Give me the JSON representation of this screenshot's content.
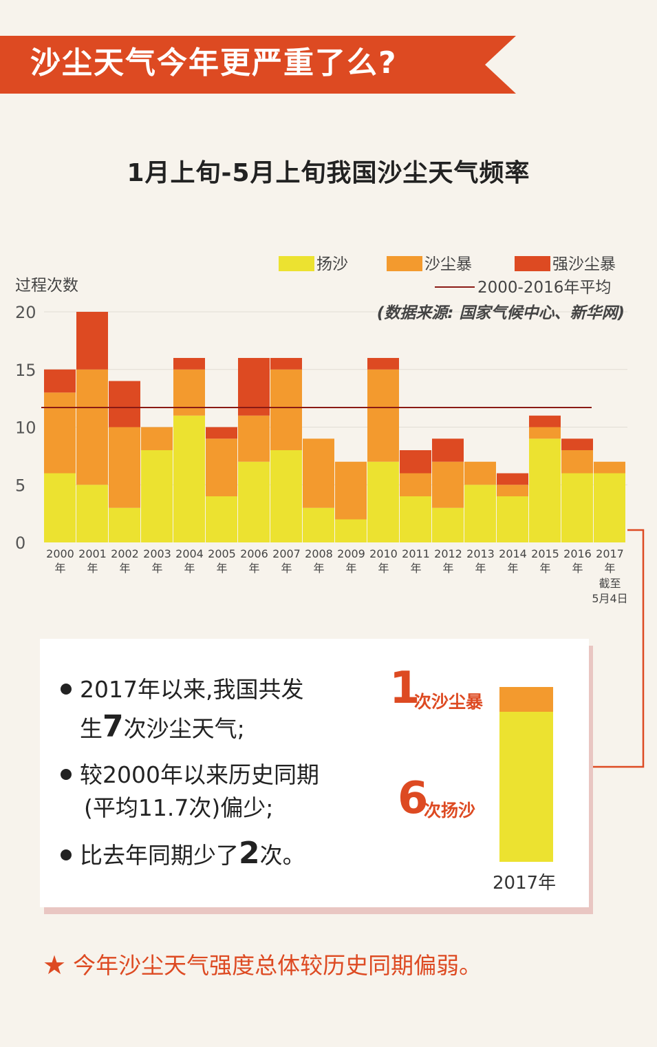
{
  "banner": {
    "title": "沙尘天气今年更严重了么?"
  },
  "chart_data": {
    "type": "bar",
    "stacked": true,
    "title": "1月上旬-5月上旬我国沙尘天气频率",
    "ylabel": "过程次数",
    "ylim": [
      0,
      20
    ],
    "yticks": [
      0,
      5,
      10,
      15,
      20
    ],
    "categories": [
      "2000",
      "2001",
      "2002",
      "2003",
      "2004",
      "2005",
      "2006",
      "2007",
      "2008",
      "2009",
      "2010",
      "2011",
      "2012",
      "2013",
      "2014",
      "2015",
      "2016",
      "2017"
    ],
    "category_labels": [
      {
        "year": "2000",
        "suffix": "年"
      },
      {
        "year": "2001",
        "suffix": "年"
      },
      {
        "year": "2002",
        "suffix": "年"
      },
      {
        "year": "2003",
        "suffix": "年"
      },
      {
        "year": "2004",
        "suffix": "年"
      },
      {
        "year": "2005",
        "suffix": "年"
      },
      {
        "year": "2006",
        "suffix": "年"
      },
      {
        "year": "2007",
        "suffix": "年"
      },
      {
        "year": "2008",
        "suffix": "年"
      },
      {
        "year": "2009",
        "suffix": "年"
      },
      {
        "year": "2010",
        "suffix": "年"
      },
      {
        "year": "2011",
        "suffix": "年"
      },
      {
        "year": "2012",
        "suffix": "年"
      },
      {
        "year": "2013",
        "suffix": "年"
      },
      {
        "year": "2014",
        "suffix": "年"
      },
      {
        "year": "2015",
        "suffix": "年"
      },
      {
        "year": "2016",
        "suffix": "年"
      },
      {
        "year": "2017",
        "suffix": "年",
        "note1": "截至",
        "note2": "5月4日"
      }
    ],
    "series": [
      {
        "name": "扬沙",
        "color": "#ece230",
        "values": [
          6,
          5,
          3,
          8,
          11,
          4,
          7,
          8,
          3,
          2,
          7,
          4,
          3,
          5,
          4,
          9,
          6,
          6
        ]
      },
      {
        "name": "沙尘暴",
        "color": "#f39a2e",
        "values": [
          7,
          10,
          7,
          2,
          4,
          5,
          4,
          7,
          6,
          5,
          8,
          2,
          4,
          2,
          1,
          1,
          2,
          1
        ]
      },
      {
        "name": "强沙尘暴",
        "color": "#dd4a22",
        "values": [
          2,
          5,
          4,
          0,
          1,
          1,
          5,
          1,
          0,
          0,
          1,
          2,
          2,
          0,
          1,
          1,
          1,
          0
        ]
      }
    ],
    "average": {
      "label": "2000-2016年平均",
      "value": 11.7,
      "color": "#8a1a14"
    },
    "source": "(数据来源: 国家气候中心、新华网)",
    "grid": true,
    "legend_position": "top-right"
  },
  "summary": {
    "line1_a": "2017年以来,我国共发",
    "line2_a": "生",
    "line2_num": "7",
    "line2_b": "次沙尘天气;",
    "line3": "较2000年以来历史同期",
    "line4": "(平均11.7次)偏少;",
    "line5_a": "比去年同期少了",
    "line5_num": "2",
    "line5_b": "次。"
  },
  "mini_chart": {
    "storm_count": "1",
    "storm_label": "次沙尘暴",
    "sand_count": "6",
    "sand_label": "次扬沙",
    "year": "2017年",
    "storm_color": "#f39a2e",
    "sand_color": "#ece230"
  },
  "footer": {
    "text": "今年沙尘天气强度总体较历史同期偏弱。",
    "icon": "star-icon"
  }
}
